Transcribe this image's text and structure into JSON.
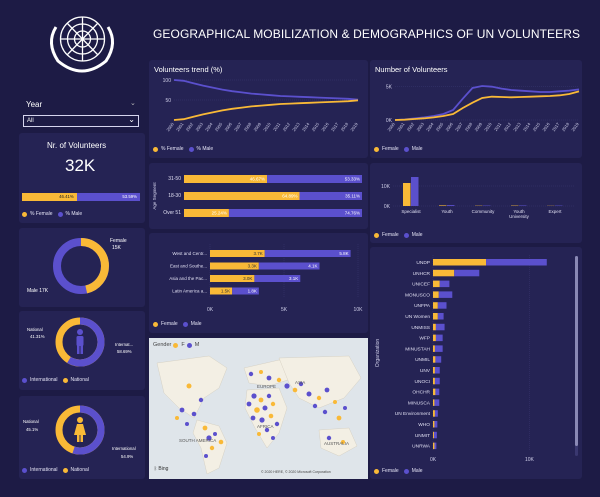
{
  "colors": {
    "female": "#f9b937",
    "male": "#5b50cd",
    "bg": "#1d1b45",
    "panel": "#252354"
  },
  "header": {
    "title": "GEOGRAPHICAL MOBILIZATION & DEMOGRAPHICS OF UN VOLUNTEERS",
    "logo_icon": "un-emblem-icon"
  },
  "filter": {
    "label": "Year",
    "value": "All"
  },
  "volunteers_card": {
    "title": "Nr. of Volunteers",
    "value": "32K",
    "female_pct": "46.41%",
    "male_pct": "53.59%",
    "legend_female": "% Female",
    "legend_male": "% Male"
  },
  "gender_donut": {
    "female_label": "Female",
    "female_value": "15K",
    "male_label": "Male 17K",
    "female_share": 0.464
  },
  "male_donut": {
    "national_label": "National",
    "national_pct": "41.31%",
    "international_label": "Internat...",
    "international_pct": "58.69%",
    "international_share": 0.587,
    "legend_international": "International",
    "legend_national": "National"
  },
  "female_donut": {
    "national_label": "National",
    "national_pct": "45.1%",
    "international_label": "International",
    "international_pct": "54.9%",
    "international_share": 0.549,
    "legend_international": "International",
    "legend_national": "National"
  },
  "chart_data": [
    {
      "type": "line",
      "title": "Volunteers trend (%)",
      "x": [
        "2000",
        "2001",
        "2002",
        "2003",
        "2004",
        "2005",
        "2006",
        "2007",
        "2008",
        "2009",
        "2010",
        "2011",
        "2012",
        "2013",
        "2014",
        "2015",
        "2016",
        "2017",
        "2018",
        "2019"
      ],
      "yticks": [
        "100",
        "50"
      ],
      "series": [
        {
          "name": "% Female",
          "values": [
            0,
            2,
            8,
            14,
            19,
            24,
            28,
            31,
            34,
            36,
            38,
            40,
            41,
            42,
            43,
            44,
            45,
            46,
            47,
            49
          ]
        },
        {
          "name": "% Male",
          "values": [
            100,
            98,
            92,
            86,
            81,
            76,
            72,
            69,
            66,
            64,
            62,
            60,
            59,
            58,
            57,
            56,
            55,
            54,
            53,
            51
          ]
        }
      ],
      "legend": [
        "% Female",
        "% Male"
      ]
    },
    {
      "type": "line",
      "title": "Number of Volunteers",
      "x": [
        "2000",
        "2001",
        "2002",
        "2003",
        "2004",
        "2005",
        "2006",
        "2007",
        "2008",
        "2009",
        "2010",
        "2011",
        "2012",
        "2013",
        "2014",
        "2015",
        "2016",
        "2017",
        "2018",
        "2019"
      ],
      "yticks": [
        "5K",
        "0K"
      ],
      "ylim": [
        0,
        6000
      ],
      "series": [
        {
          "name": "Female",
          "values": [
            0,
            50,
            150,
            250,
            400,
            600,
            900,
            1800,
            2600,
            3300,
            3500,
            3450,
            3400,
            3450,
            3500,
            3550,
            3600,
            3700,
            3900,
            4300
          ]
        },
        {
          "name": "Male",
          "values": [
            0,
            80,
            250,
            400,
            600,
            900,
            1500,
            3200,
            4800,
            5100,
            5000,
            4700,
            4500,
            4400,
            4300,
            4200,
            4200,
            4300,
            4400,
            4600
          ]
        }
      ],
      "legend": [
        "Female",
        "Male"
      ]
    },
    {
      "type": "bar",
      "orientation": "horizontal",
      "stacked": "100%",
      "ylabel": "Age Segment",
      "categories": [
        "31-50",
        "18-30",
        "Over 51"
      ],
      "series": [
        {
          "name": "Female",
          "values": [
            46.67,
            64.89,
            25.24
          ],
          "labels": [
            "46.67%",
            "64.89%",
            "25.24%"
          ]
        },
        {
          "name": "Male",
          "values": [
            53.33,
            35.11,
            74.76
          ],
          "labels": [
            "53.33%",
            "35.11%",
            "74.76%"
          ]
        }
      ],
      "legend": [
        "Female",
        "Male"
      ]
    },
    {
      "type": "bar",
      "orientation": "horizontal",
      "stacked": true,
      "categories": [
        "West and Centr...",
        "East and Southe...",
        "Asia and the Pac...",
        "Latin America a..."
      ],
      "series": [
        {
          "name": "Female",
          "values": [
            3700,
            3300,
            3000,
            1500
          ],
          "labels": [
            "3.7K",
            "3.3K",
            "3.0K",
            "1.5K"
          ]
        },
        {
          "name": "Male",
          "values": [
            5800,
            4100,
            3100,
            1800
          ],
          "labels": [
            "5.8K",
            "4.1K",
            "3.1K",
            "1.8K"
          ]
        }
      ],
      "xticks": [
        "0K",
        "5K",
        "10K"
      ],
      "xlim": [
        0,
        10000
      ],
      "legend": [
        "Female",
        "Male"
      ]
    },
    {
      "type": "bar",
      "orientation": "vertical",
      "categories": [
        "Specialist",
        "Youth",
        "Community",
        "Youth University",
        "Expert"
      ],
      "series": [
        {
          "name": "Female",
          "values": [
            11500,
            300,
            150,
            200,
            100
          ]
        },
        {
          "name": "Male",
          "values": [
            14500,
            450,
            200,
            250,
            200
          ]
        }
      ],
      "yticks": [
        "10K",
        "0K"
      ],
      "ylim": [
        0,
        18000
      ],
      "legend": [
        "Female",
        "Male"
      ]
    },
    {
      "type": "bar",
      "orientation": "horizontal",
      "stacked": true,
      "ylabel": "Organization",
      "categories": [
        "UNDP",
        "UNHCR",
        "UNICEF",
        "MONUSCO",
        "UNFPA",
        "UN Women",
        "UNMISS",
        "WFP",
        "MINUSTAH",
        "UNMIL",
        "UNV",
        "UNOCI",
        "OHCHR",
        "MINUSCA",
        "UN Environment",
        "WHO",
        "UNMIT",
        "UNRWA"
      ],
      "series": [
        {
          "name": "Female",
          "values": [
            5500,
            2200,
            700,
            600,
            500,
            500,
            300,
            300,
            200,
            250,
            200,
            200,
            250,
            150,
            200,
            150,
            100,
            150
          ]
        },
        {
          "name": "Male",
          "values": [
            6300,
            2600,
            1000,
            1400,
            900,
            600,
            900,
            700,
            800,
            600,
            500,
            500,
            400,
            500,
            300,
            300,
            300,
            200
          ]
        }
      ],
      "xticks": [
        "0K",
        "10K"
      ],
      "xlim": [
        0,
        14000
      ],
      "legend": [
        "Female",
        "Male"
      ]
    }
  ],
  "map": {
    "title": "Gender",
    "legend_f": "F",
    "legend_m": "M",
    "labels": [
      "EUROPE",
      "ASIA",
      "AFRICA",
      "SOUTH AMERICA",
      "AUSTRALIA"
    ],
    "attribution": "© 2020 HERE, © 2020 Microsoft Corporation",
    "brand": "Bing"
  }
}
